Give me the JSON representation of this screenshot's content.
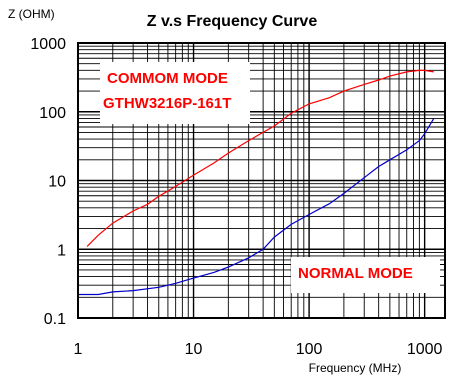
{
  "chart_data": {
    "type": "line",
    "title": "Z v.s Frequency Curve",
    "ylabel": "Z (OHM)",
    "xlabel": "Frequency (MHz)",
    "xscale": "log",
    "yscale": "log",
    "xlim": [
      1,
      1500
    ],
    "ylim": [
      0.1,
      1000
    ],
    "xticks": [
      {
        "value": 1,
        "label": "1"
      },
      {
        "value": 10,
        "label": "10"
      },
      {
        "value": 100,
        "label": "100"
      },
      {
        "value": 1000,
        "label": "1000"
      }
    ],
    "yticks": [
      {
        "value": 0.1,
        "label": "0.1"
      },
      {
        "value": 1,
        "label": "1"
      },
      {
        "value": 10,
        "label": "10"
      },
      {
        "value": 100,
        "label": "100"
      },
      {
        "value": 1000,
        "label": "1000"
      }
    ],
    "grid": true,
    "series": [
      {
        "name": "COMMOM MODE",
        "color": "#ff0000",
        "points": [
          [
            1.2,
            1.1
          ],
          [
            1.5,
            1.6
          ],
          [
            2,
            2.4
          ],
          [
            3,
            3.6
          ],
          [
            4,
            4.5
          ],
          [
            5,
            5.9
          ],
          [
            7,
            8.2
          ],
          [
            10,
            12
          ],
          [
            15,
            18
          ],
          [
            20,
            25
          ],
          [
            30,
            38
          ],
          [
            50,
            62
          ],
          [
            70,
            95
          ],
          [
            100,
            130
          ],
          [
            150,
            160
          ],
          [
            200,
            200
          ],
          [
            300,
            250
          ],
          [
            400,
            290
          ],
          [
            500,
            330
          ],
          [
            700,
            380
          ],
          [
            900,
            400
          ],
          [
            1000,
            400
          ],
          [
            1200,
            380
          ]
        ]
      },
      {
        "name": "NORMAL MODE",
        "color": "#0000cc",
        "points": [
          [
            1,
            0.22
          ],
          [
            1.5,
            0.22
          ],
          [
            2,
            0.24
          ],
          [
            3,
            0.25
          ],
          [
            5,
            0.28
          ],
          [
            7,
            0.32
          ],
          [
            10,
            0.38
          ],
          [
            15,
            0.46
          ],
          [
            20,
            0.55
          ],
          [
            30,
            0.75
          ],
          [
            40,
            1.0
          ],
          [
            50,
            1.5
          ],
          [
            70,
            2.3
          ],
          [
            100,
            3.2
          ],
          [
            150,
            4.6
          ],
          [
            200,
            6.5
          ],
          [
            300,
            11
          ],
          [
            400,
            16
          ],
          [
            500,
            20
          ],
          [
            700,
            28
          ],
          [
            900,
            38
          ],
          [
            1000,
            48
          ],
          [
            1200,
            80
          ]
        ]
      }
    ],
    "annotations": [
      {
        "text": "COMMOM MODE",
        "color": "#ff0000"
      },
      {
        "text": "GTHW3216P-161T",
        "color": "#ff0000"
      },
      {
        "text": "NORMAL MODE",
        "color": "#ff0000"
      }
    ]
  }
}
